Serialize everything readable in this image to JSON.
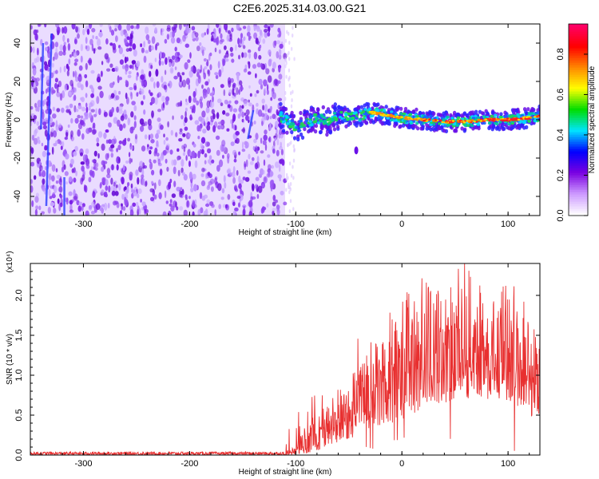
{
  "title": "C2E6.2025.314.03.00.G21",
  "chart_data": [
    {
      "type": "heatmap",
      "xlabel": "Height of straight line (km)",
      "ylabel": "Frequency (Hz)",
      "xlim": [
        -350,
        130
      ],
      "ylim": [
        -50,
        50
      ],
      "xticks": [
        -300,
        -200,
        -100,
        0,
        100
      ],
      "xtick_labels": [
        "-300",
        "-200",
        "-100",
        "0",
        "100"
      ],
      "yticks": [
        -40,
        -20,
        0,
        20,
        40
      ],
      "ytick_labels": [
        "-40",
        "-20",
        "0",
        "20",
        "40"
      ],
      "noise_region_x": [
        -350,
        -110
      ],
      "signal_trace": {
        "x": [
          -115,
          -100,
          -90,
          -80,
          -70,
          -60,
          -50,
          -40,
          -30,
          -20,
          -10,
          0,
          20,
          40,
          60,
          80,
          100,
          120,
          130
        ],
        "y": [
          2,
          -4,
          -2,
          1,
          -1,
          2,
          1,
          2,
          4,
          3,
          2,
          1,
          0,
          -1,
          -1,
          0,
          0,
          1,
          2
        ]
      },
      "colorbar": {
        "label": "Normalized spectral amplitude",
        "range": [
          0.0,
          0.95
        ],
        "ticks": [
          0.0,
          0.2,
          0.4,
          0.6,
          0.8
        ],
        "tick_labels": [
          "0.0",
          "0.2",
          "0.4",
          "0.6",
          "0.8"
        ],
        "colors": [
          "#ffffff",
          "#cc99ff",
          "#7a00e0",
          "#0000ff",
          "#00e5ff",
          "#00dd00",
          "#ffff00",
          "#ff8800",
          "#ff0000",
          "#ff0066"
        ]
      }
    },
    {
      "type": "line",
      "xlabel": "Height of straight line (km)",
      "ylabel": "SNR (10 * v/v)",
      "scale_label": "(x10⁴)",
      "xlim": [
        -350,
        130
      ],
      "ylim": [
        0,
        2.4
      ],
      "xticks": [
        -300,
        -200,
        -100,
        0,
        100
      ],
      "xtick_labels": [
        "-300",
        "-200",
        "-100",
        "0",
        "100"
      ],
      "yticks": [
        0,
        0.5,
        1.0,
        1.5,
        2.0
      ],
      "ytick_labels": [
        "0.0",
        "0.5",
        "1.0",
        "1.5",
        "2.0"
      ],
      "line_color": "#e83030",
      "envelope": {
        "x": [
          -350,
          -110,
          -100,
          -90,
          -80,
          -70,
          -60,
          -50,
          -40,
          -30,
          -20,
          -10,
          0,
          10,
          20,
          30,
          40,
          50,
          60,
          70,
          80,
          90,
          100,
          110,
          120,
          130
        ],
        "low": [
          0.0,
          0.0,
          0.0,
          0.02,
          0.05,
          0.1,
          0.15,
          0.2,
          0.25,
          0.3,
          0.35,
          0.4,
          0.45,
          0.5,
          0.6,
          0.65,
          0.65,
          0.7,
          0.7,
          0.75,
          0.7,
          0.7,
          0.65,
          0.6,
          0.5,
          0.4
        ],
        "high": [
          0.04,
          0.04,
          0.12,
          0.4,
          0.55,
          0.65,
          0.85,
          1.0,
          1.2,
          1.4,
          1.55,
          1.7,
          1.9,
          2.1,
          2.3,
          2.1,
          2.0,
          2.1,
          2.3,
          2.2,
          2.0,
          1.9,
          1.9,
          1.85,
          1.8,
          1.5
        ]
      }
    }
  ]
}
